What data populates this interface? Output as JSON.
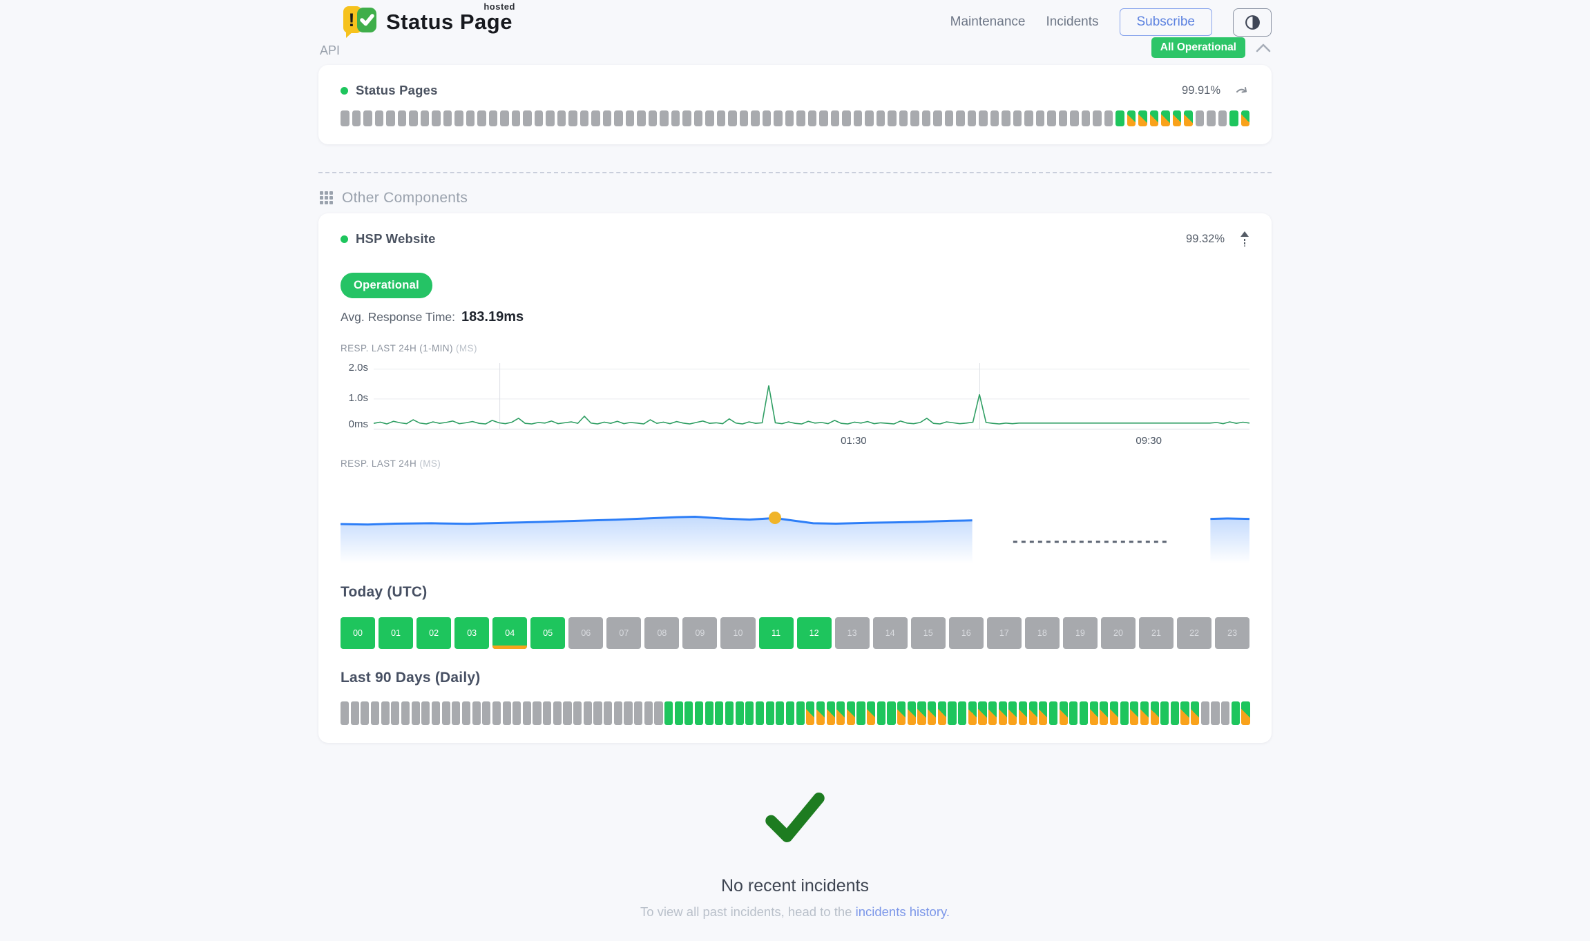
{
  "header": {
    "brand": {
      "title": "Status Page",
      "superscript": "hosted"
    },
    "nav": [
      {
        "label": "Maintenance"
      },
      {
        "label": "Incidents"
      }
    ],
    "subscribe_label": "Subscribe",
    "overall_status": "All Operational"
  },
  "api_section": {
    "title": "API",
    "component": {
      "name": "Status Pages",
      "uptime": "99.91%",
      "bar": "--------------------------------------------------------------------UMMMMMM---UM"
    }
  },
  "other_components": {
    "title": "Other Components",
    "component": {
      "name": "HSP Website",
      "uptime": "99.32%",
      "status_label": "Operational",
      "avg_response_label": "Avg. Response Time:",
      "avg_response_value": "183.19ms",
      "chart1_label": "RESP. LAST 24H (1-MIN)",
      "chart1_unit": "(MS)",
      "chart2_label": "RESP. LAST 24H",
      "chart2_unit": "(MS)",
      "today_title": "Today (UTC)",
      "hours": [
        {
          "label": "00",
          "state": "up"
        },
        {
          "label": "01",
          "state": "up"
        },
        {
          "label": "02",
          "state": "up"
        },
        {
          "label": "03",
          "state": "up"
        },
        {
          "label": "04",
          "state": "up",
          "partial": true
        },
        {
          "label": "05",
          "state": "up"
        },
        {
          "label": "06",
          "state": "none"
        },
        {
          "label": "07",
          "state": "none"
        },
        {
          "label": "08",
          "state": "none"
        },
        {
          "label": "09",
          "state": "none"
        },
        {
          "label": "10",
          "state": "none"
        },
        {
          "label": "11",
          "state": "up"
        },
        {
          "label": "12",
          "state": "up"
        },
        {
          "label": "13",
          "state": "none"
        },
        {
          "label": "14",
          "state": "none"
        },
        {
          "label": "15",
          "state": "none"
        },
        {
          "label": "16",
          "state": "none"
        },
        {
          "label": "17",
          "state": "none"
        },
        {
          "label": "18",
          "state": "none"
        },
        {
          "label": "19",
          "state": "none"
        },
        {
          "label": "20",
          "state": "none"
        },
        {
          "label": "21",
          "state": "none"
        },
        {
          "label": "22",
          "state": "none"
        },
        {
          "label": "23",
          "state": "none"
        }
      ],
      "last90_title": "Last 90 Days (Daily)",
      "last90": "--------------------------------UUUUUUUUUUUUUUMMMMMUMUUMMMMMUUMMMMMMMMUMUUMMMUMMMUUMM---UM"
    }
  },
  "chart_data": [
    {
      "type": "line",
      "title": "RESP. LAST 24H (1-MIN) (MS)",
      "ylabel_ticks": [
        "2.0s",
        "1.0s",
        "0ms"
      ],
      "y_range_ms": [
        0,
        2200
      ],
      "h_gridlines_ms": [
        1000,
        2000
      ],
      "vertical_gridlines": [
        0.144,
        0.692
      ],
      "x_tick_labels": [
        {
          "label": "01:30",
          "pos": 0.548
        },
        {
          "label": "09:30",
          "pos": 0.885
        }
      ],
      "line_color": "#2f9e63",
      "series_ms": [
        180,
        220,
        160,
        250,
        200,
        170,
        300,
        190,
        160,
        230,
        180,
        210,
        260,
        170,
        200,
        240,
        180,
        160,
        280,
        200,
        170,
        220,
        350,
        180,
        160,
        210,
        190,
        260,
        170,
        200,
        230,
        180,
        420,
        190,
        160,
        220,
        180,
        250,
        170,
        210,
        190,
        160,
        300,
        180,
        220,
        170,
        240,
        190,
        160,
        210,
        260,
        180,
        200,
        170,
        330,
        190,
        160,
        230,
        180,
        200,
        1450,
        200,
        170,
        230,
        180,
        160,
        250,
        190,
        210,
        170,
        280,
        180,
        160,
        220,
        190,
        240,
        170,
        200,
        180,
        160,
        260,
        190,
        170,
        210,
        350,
        180,
        160,
        230,
        200,
        170,
        190,
        220,
        1150,
        210,
        180,
        160,
        190,
        170,
        190,
        190,
        190,
        190,
        190,
        190,
        190,
        190,
        190,
        190,
        190,
        190,
        190,
        190,
        190,
        190,
        190,
        190,
        190,
        190,
        190,
        190,
        190,
        190,
        190,
        190,
        190,
        190,
        190,
        190,
        210,
        170,
        230,
        180,
        220,
        190
      ]
    },
    {
      "type": "area",
      "title": "RESP. LAST 24H (MS)",
      "y_range_ms": [
        0,
        400
      ],
      "line_color": "#2d7ef7",
      "segments": [
        {
          "points": [
            [
              0,
              182
            ],
            [
              0.03,
              180
            ],
            [
              0.06,
              184
            ],
            [
              0.1,
              186
            ],
            [
              0.14,
              183
            ],
            [
              0.18,
              188
            ],
            [
              0.22,
              192
            ],
            [
              0.26,
              197
            ],
            [
              0.3,
              202
            ],
            [
              0.34,
              209
            ],
            [
              0.37,
              214
            ],
            [
              0.39,
              216
            ],
            [
              0.42,
              208
            ],
            [
              0.45,
              203
            ],
            [
              0.478,
              210
            ],
            [
              0.5,
              197
            ],
            [
              0.52,
              186
            ],
            [
              0.545,
              184
            ],
            [
              0.58,
              188
            ],
            [
              0.61,
              190
            ],
            [
              0.64,
              193
            ],
            [
              0.67,
              197
            ],
            [
              0.695,
              199
            ]
          ]
        },
        {
          "points": [
            [
              0.957,
              206
            ],
            [
              0.975,
              208
            ],
            [
              1,
              206
            ]
          ]
        }
      ],
      "gap": {
        "from": 0.74,
        "to": 0.912,
        "level_ms": 100,
        "style": "dashed"
      },
      "marker": {
        "pos": 0.478,
        "value_ms": 210,
        "color": "#f0b429"
      }
    }
  ],
  "incidents": {
    "title": "No recent incidents",
    "subtext_prefix": "To view all past incidents, head to the ",
    "link_text": "incidents history."
  },
  "colors": {
    "operational_green": "#1ec55d",
    "badge_green": "#2dc568",
    "degraded_orange": "#f9a21b",
    "no_data_gray": "#a8aaae",
    "chart_line_green": "#2f9e63",
    "chart_line_blue": "#2d7ef7",
    "marker_yellow": "#f0b429",
    "link_blue": "#7c97e9",
    "check_green": "#1d7c20"
  }
}
